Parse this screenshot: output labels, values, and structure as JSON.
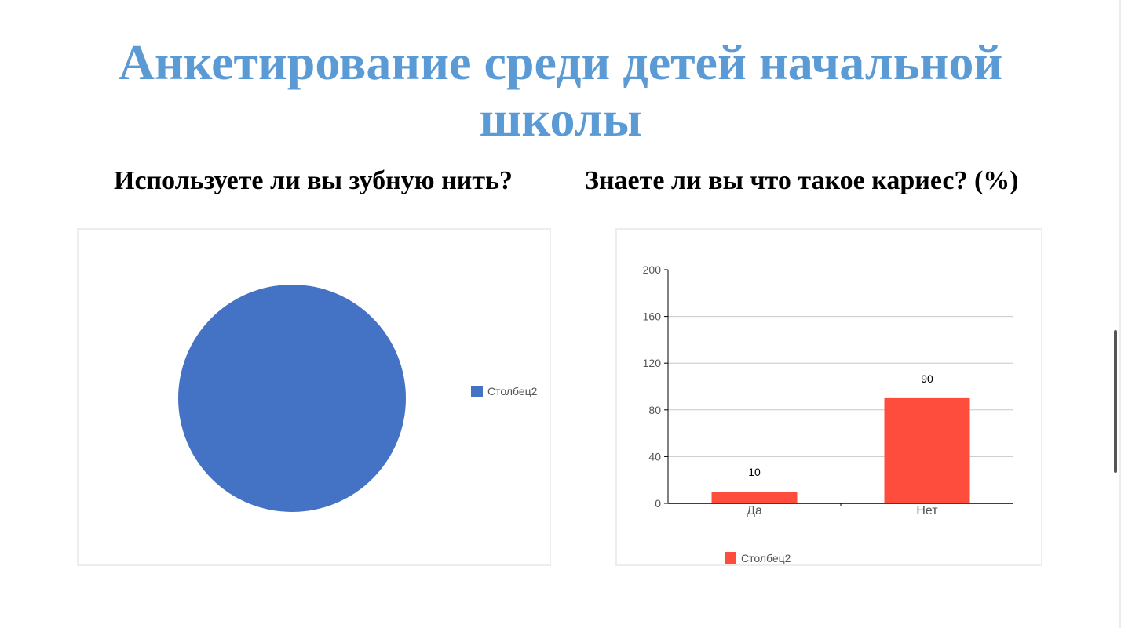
{
  "slide": {
    "title": "Анкетирование среди детей начальной школы"
  },
  "questions": {
    "left": "Используете ли вы зубную нить?",
    "right": "Знаете ли вы что такое кариес? (%)"
  },
  "colors": {
    "title": "#5b9bd5",
    "pie": "#4472c4",
    "bar": "#ff4d3d"
  },
  "chart_data": [
    {
      "type": "pie",
      "title": "Используете ли вы зубную нить?",
      "series": [
        {
          "name": "Столбец2",
          "values": [
            100
          ]
        }
      ],
      "legend": {
        "position": "right",
        "entries": [
          "Столбец2"
        ]
      }
    },
    {
      "type": "bar",
      "title": "Знаете ли вы что такое кариес? (%)",
      "categories": [
        "Да",
        "Нет"
      ],
      "series": [
        {
          "name": "Столбец2",
          "values": [
            10,
            90
          ]
        }
      ],
      "data_labels": [
        "10",
        "90"
      ],
      "yticks": [
        "0",
        "40",
        "80",
        "120",
        "160",
        "200"
      ],
      "ylim": [
        0,
        200
      ],
      "grid": true,
      "legend": {
        "position": "bottom-left",
        "entries": [
          "Столбец2"
        ]
      }
    }
  ]
}
